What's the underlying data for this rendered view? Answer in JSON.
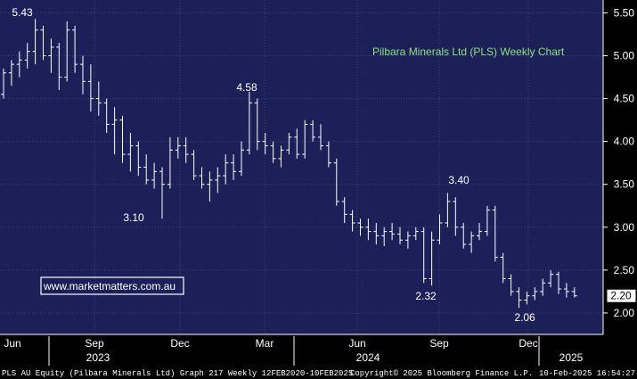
{
  "chart_data": {
    "type": "ohlc",
    "title": "Pilbara Minerals Ltd (PLS) Weekly Chart",
    "website": "www.marketmatters.com.au",
    "ylim": [
      1.75,
      5.65
    ],
    "yticks": [
      "2.00",
      "2.50",
      "3.00",
      "3.50",
      "4.00",
      "4.50",
      "5.00",
      "5.50"
    ],
    "last_price": "2.20",
    "month_labels": [
      {
        "label": "Jun",
        "x": 0
      },
      {
        "label": "Sep",
        "x": 13
      },
      {
        "label": "Dec",
        "x": 26
      },
      {
        "label": "Mar",
        "x": 39
      },
      {
        "label": "Jun",
        "x": 52
      },
      {
        "label": "Sep",
        "x": 65
      },
      {
        "label": "Dec",
        "x": 78
      },
      {
        "label": "Jun",
        "x": 0
      }
    ],
    "year_labels": [
      {
        "label": "2023",
        "x": 13
      },
      {
        "label": "2024",
        "x": 53
      },
      {
        "label": "2025",
        "x": 84
      }
    ],
    "annotations": [
      {
        "text": "5.43",
        "x": 3,
        "y": 5.43
      },
      {
        "text": "3.10",
        "x": 20,
        "y": 3.1
      },
      {
        "text": "4.58",
        "x": 37,
        "y": 4.58
      },
      {
        "text": "3.40",
        "x": 70,
        "y": 3.4
      },
      {
        "text": "2.32",
        "x": 66,
        "y": 2.32
      },
      {
        "text": "2.06",
        "x": 81,
        "y": 2.06
      }
    ],
    "ohlc": [
      [
        4.55,
        4.85,
        4.5,
        4.8
      ],
      [
        4.8,
        4.95,
        4.65,
        4.9
      ],
      [
        4.9,
        5.05,
        4.75,
        4.95
      ],
      [
        4.95,
        5.15,
        4.85,
        5.05
      ],
      [
        5.05,
        5.43,
        4.9,
        5.3
      ],
      [
        5.3,
        5.35,
        4.95,
        5.0
      ],
      [
        5.0,
        5.2,
        4.8,
        5.1
      ],
      [
        5.1,
        5.15,
        4.6,
        4.75
      ],
      [
        4.75,
        5.4,
        4.7,
        5.3
      ],
      [
        5.3,
        5.35,
        4.8,
        4.9
      ],
      [
        4.9,
        5.0,
        4.55,
        4.7
      ],
      [
        4.7,
        4.9,
        4.35,
        4.5
      ],
      [
        4.5,
        4.7,
        4.3,
        4.45
      ],
      [
        4.45,
        4.5,
        4.1,
        4.2
      ],
      [
        4.2,
        4.4,
        3.85,
        4.25
      ],
      [
        4.25,
        4.3,
        3.75,
        3.85
      ],
      [
        3.85,
        4.1,
        3.65,
        3.95
      ],
      [
        3.95,
        4.0,
        3.6,
        3.7
      ],
      [
        3.7,
        3.85,
        3.5,
        3.55
      ],
      [
        3.55,
        3.75,
        3.45,
        3.65
      ],
      [
        3.65,
        3.7,
        3.1,
        3.5
      ],
      [
        3.5,
        4.05,
        3.45,
        3.9
      ],
      [
        3.9,
        4.05,
        3.8,
        3.95
      ],
      [
        3.95,
        4.05,
        3.75,
        3.85
      ],
      [
        3.85,
        3.9,
        3.55,
        3.6
      ],
      [
        3.6,
        3.7,
        3.45,
        3.5
      ],
      [
        3.5,
        3.65,
        3.3,
        3.55
      ],
      [
        3.55,
        3.7,
        3.4,
        3.6
      ],
      [
        3.6,
        3.85,
        3.5,
        3.75
      ],
      [
        3.75,
        3.85,
        3.55,
        3.65
      ],
      [
        3.65,
        4.0,
        3.6,
        3.9
      ],
      [
        3.9,
        4.58,
        3.85,
        4.45
      ],
      [
        4.45,
        4.5,
        3.9,
        4.0
      ],
      [
        4.0,
        4.1,
        3.85,
        3.95
      ],
      [
        3.95,
        4.0,
        3.75,
        3.8
      ],
      [
        3.8,
        3.95,
        3.7,
        3.9
      ],
      [
        3.9,
        4.1,
        3.85,
        4.05
      ],
      [
        4.05,
        4.15,
        3.8,
        3.85
      ],
      [
        3.85,
        4.25,
        3.8,
        4.2
      ],
      [
        4.2,
        4.25,
        4.0,
        4.05
      ],
      [
        4.05,
        4.2,
        3.9,
        3.95
      ],
      [
        3.95,
        4.0,
        3.7,
        3.75
      ],
      [
        3.75,
        3.8,
        3.25,
        3.3
      ],
      [
        3.3,
        3.35,
        3.05,
        3.15
      ],
      [
        3.15,
        3.2,
        2.95,
        3.05
      ],
      [
        3.05,
        3.1,
        2.9,
        3.0
      ],
      [
        3.0,
        3.1,
        2.85,
        2.95
      ],
      [
        2.95,
        3.05,
        2.8,
        2.9
      ],
      [
        2.9,
        3.0,
        2.78,
        2.95
      ],
      [
        2.95,
        3.05,
        2.85,
        2.92
      ],
      [
        2.92,
        3.0,
        2.8,
        2.85
      ],
      [
        2.85,
        2.95,
        2.75,
        2.9
      ],
      [
        2.9,
        3.0,
        2.85,
        2.95
      ],
      [
        2.95,
        3.0,
        2.35,
        2.4
      ],
      [
        2.4,
        2.95,
        2.32,
        2.85
      ],
      [
        2.85,
        3.15,
        2.8,
        3.05
      ],
      [
        3.05,
        3.4,
        3.0,
        3.3
      ],
      [
        3.3,
        3.35,
        2.9,
        3.0
      ],
      [
        3.0,
        3.05,
        2.75,
        2.8
      ],
      [
        2.8,
        2.95,
        2.7,
        2.9
      ],
      [
        2.9,
        3.05,
        2.85,
        2.95
      ],
      [
        2.95,
        3.25,
        2.9,
        3.2
      ],
      [
        3.2,
        3.25,
        2.6,
        2.65
      ],
      [
        2.65,
        2.7,
        2.35,
        2.4
      ],
      [
        2.4,
        2.45,
        2.2,
        2.25
      ],
      [
        2.25,
        2.3,
        2.06,
        2.15
      ],
      [
        2.15,
        2.25,
        2.1,
        2.2
      ],
      [
        2.2,
        2.3,
        2.15,
        2.25
      ],
      [
        2.25,
        2.4,
        2.2,
        2.35
      ],
      [
        2.35,
        2.5,
        2.3,
        2.45
      ],
      [
        2.45,
        2.48,
        2.22,
        2.28
      ],
      [
        2.28,
        2.35,
        2.18,
        2.25
      ],
      [
        2.25,
        2.3,
        2.18,
        2.2
      ]
    ]
  },
  "footer": {
    "left": "PLS AU Equity (Pilbara Minerals Ltd) Graph 217  Weekly 12FEB2020-10FEB2025",
    "center": "Copyright© 2025 Bloomberg Finance L.P.",
    "right": "10-Feb-2025 16:54:27"
  },
  "colors": {
    "background": "#1b2158",
    "bars": "#ffffff",
    "title": "#8ee07a",
    "grid": "#3b4478"
  }
}
